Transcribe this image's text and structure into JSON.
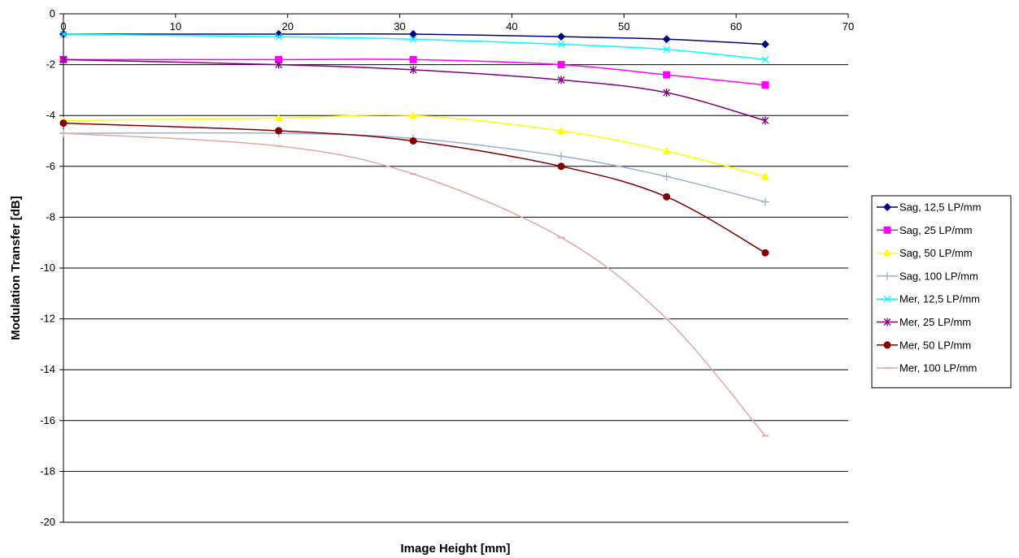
{
  "chart_data": {
    "type": "line",
    "title": "",
    "xlabel": "Image Height [mm]",
    "ylabel": "Modulation Transfer [dB]",
    "xlim": [
      0,
      70
    ],
    "ylim": [
      -20,
      0
    ],
    "xticks": [
      0,
      10,
      20,
      30,
      40,
      50,
      60,
      70
    ],
    "yticks": [
      0,
      -2,
      -4,
      -6,
      -8,
      -10,
      -12,
      -14,
      -16,
      -18,
      -20
    ],
    "x_tick_position": "top",
    "grid": "horizontal",
    "legend_position": "right",
    "x": [
      0,
      19.2,
      31.2,
      44.4,
      53.8,
      62.6
    ],
    "series": [
      {
        "name": "Sag, 12,5 LP/mm",
        "color": "#000080",
        "marker": "diamond",
        "values": [
          -0.8,
          -0.8,
          -0.8,
          -0.9,
          -1.0,
          -1.2
        ]
      },
      {
        "name": "Sag, 25 LP/mm",
        "color": "#ff00ff",
        "marker": "square",
        "values": [
          -1.8,
          -1.8,
          -1.8,
          -2.0,
          -2.4,
          -2.8
        ]
      },
      {
        "name": "Sag, 50 LP/mm",
        "color": "#ffff00",
        "marker": "triangle",
        "values": [
          -4.2,
          -4.1,
          -4.0,
          -4.6,
          -5.4,
          -6.4
        ]
      },
      {
        "name": "Sag, 100 LP/mm",
        "color": "#9aafd4",
        "marker": "plus",
        "values": [
          -4.7,
          -4.7,
          -4.9,
          -5.6,
          -6.4,
          -7.4
        ]
      },
      {
        "name": "Mer, 12,5 LP/mm",
        "color": "#00ffff",
        "marker": "x",
        "values": [
          -0.8,
          -0.9,
          -1.0,
          -1.2,
          -1.4,
          -1.8
        ]
      },
      {
        "name": "Mer, 25 LP/mm",
        "color": "#800080",
        "marker": "star",
        "values": [
          -1.8,
          -2.0,
          -2.2,
          -2.6,
          -3.1,
          -4.2
        ]
      },
      {
        "name": "Mer, 50 LP/mm",
        "color": "#800000",
        "marker": "circle",
        "values": [
          -4.3,
          -4.6,
          -5.0,
          -6.0,
          -7.2,
          -9.4
        ]
      },
      {
        "name": "Mer, 100 LP/mm",
        "color": "#e0a8a8",
        "marker": "dash",
        "values": [
          -4.7,
          -5.2,
          -6.3,
          -8.8,
          -12.0,
          -16.6
        ]
      }
    ]
  }
}
